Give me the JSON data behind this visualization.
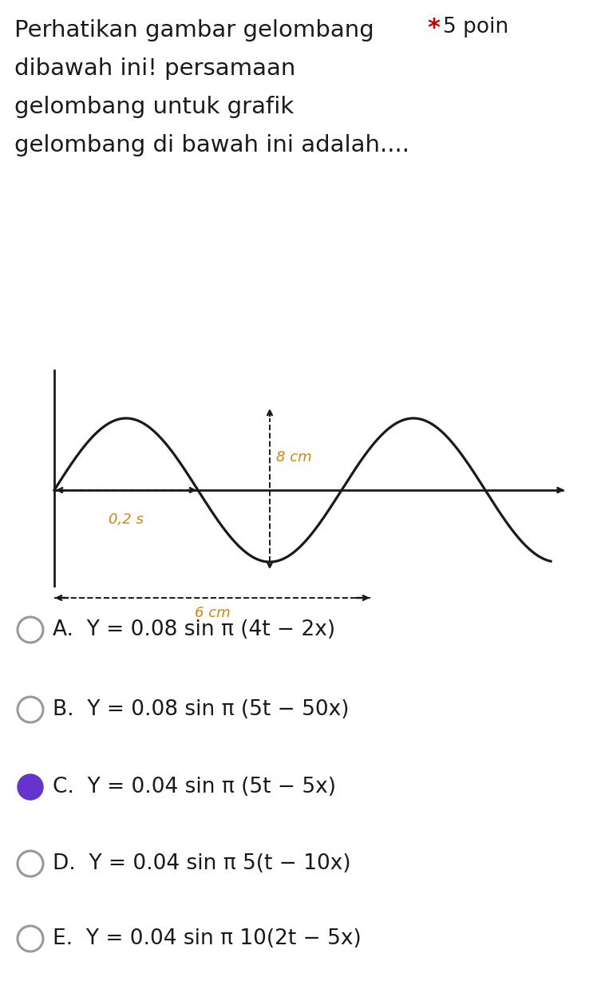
{
  "title_line1": "Perhatikan gambar gelombang",
  "title_line2": "dibawah ini! persamaan",
  "title_line3": "gelombang untuk grafik",
  "title_line4": "gelombang di bawah ini adalah....",
  "amplitude_label": "8 cm",
  "period_label": "0,2 s",
  "wavelength_label": "6 cm",
  "options": [
    {
      "letter": "A.",
      "text": "Y = 0.08 sin π (4t − 2x)",
      "selected": false
    },
    {
      "letter": "B.",
      "text": "Y = 0.08 sin π (5t − 50x)",
      "selected": false
    },
    {
      "letter": "C.",
      "text": "Y = 0.04 sin π (5t − 5x)",
      "selected": true
    },
    {
      "letter": "D.",
      "text": "Y = 0.04 sin π 5(t − 10x)",
      "selected": false
    },
    {
      "letter": "E.",
      "text": "Y = 0.04 sin π 10(2t − 5x)",
      "selected": false
    }
  ],
  "wave_color": "#1a1a1a",
  "annot_color": "#d4860a",
  "background_color": "#ffffff",
  "selected_color": "#6633cc",
  "unselected_color": "#999999",
  "text_color": "#1a1a1a",
  "star_color": "#cc0000"
}
